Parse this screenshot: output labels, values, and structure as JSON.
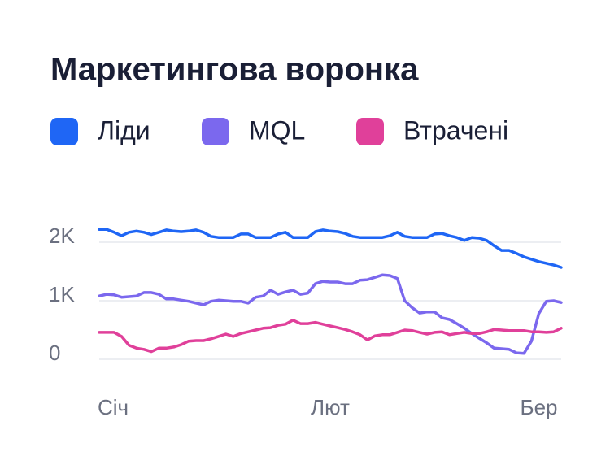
{
  "chart_data": {
    "type": "line",
    "title": "Маркетингова воронка",
    "categories": [
      "Січ",
      null,
      null,
      null,
      null,
      null,
      null,
      null,
      null,
      null,
      null,
      null,
      null,
      null,
      null,
      null,
      null,
      null,
      null,
      null,
      null,
      null,
      null,
      null,
      null,
      null,
      null,
      null,
      null,
      null,
      null,
      "Лют",
      null,
      null,
      null,
      null,
      null,
      null,
      null,
      null,
      null,
      null,
      null,
      null,
      null,
      null,
      null,
      null,
      null,
      null,
      null,
      null,
      null,
      null,
      null,
      null,
      null,
      null,
      null,
      "Бер",
      null,
      null,
      null
    ],
    "series": [
      {
        "name": "Ліди",
        "color": "#1f66f5",
        "values": [
          2220,
          2220,
          2170,
          2110,
          2170,
          2190,
          2170,
          2130,
          2170,
          2210,
          2190,
          2180,
          2190,
          2210,
          2170,
          2100,
          2080,
          2080,
          2080,
          2140,
          2140,
          2080,
          2080,
          2080,
          2140,
          2170,
          2080,
          2080,
          2080,
          2180,
          2210,
          2190,
          2180,
          2150,
          2100,
          2080,
          2080,
          2080,
          2080,
          2110,
          2170,
          2100,
          2080,
          2080,
          2080,
          2140,
          2150,
          2110,
          2080,
          2030,
          2080,
          2070,
          2030,
          1940,
          1860,
          1860,
          1810,
          1750,
          1710,
          1670,
          1640,
          1610,
          1570
        ]
      },
      {
        "name": "MQL",
        "color": "#7b68ee",
        "values": [
          1080,
          1110,
          1100,
          1060,
          1070,
          1080,
          1140,
          1140,
          1110,
          1030,
          1030,
          1010,
          990,
          960,
          930,
          990,
          1010,
          1000,
          990,
          990,
          960,
          1060,
          1080,
          1180,
          1110,
          1150,
          1180,
          1110,
          1130,
          1290,
          1330,
          1320,
          1320,
          1290,
          1290,
          1350,
          1360,
          1400,
          1440,
          1430,
          1380,
          1000,
          880,
          790,
          810,
          810,
          710,
          680,
          610,
          530,
          440,
          360,
          280,
          190,
          180,
          170,
          110,
          100,
          310,
          780,
          990,
          1000,
          970
        ]
      },
      {
        "name": "Втрачені",
        "color": "#e0409a",
        "values": [
          460,
          460,
          460,
          390,
          240,
          190,
          170,
          130,
          190,
          190,
          210,
          250,
          310,
          320,
          320,
          350,
          390,
          430,
          390,
          440,
          470,
          500,
          530,
          540,
          580,
          600,
          670,
          610,
          610,
          630,
          600,
          570,
          540,
          510,
          470,
          420,
          330,
          400,
          420,
          420,
          460,
          500,
          490,
          460,
          430,
          460,
          470,
          420,
          440,
          460,
          440,
          440,
          470,
          510,
          500,
          490,
          490,
          490,
          470,
          470,
          460,
          470,
          530
        ]
      }
    ],
    "ylim": [
      0,
      2300
    ],
    "yticks": [
      0,
      {
        "value": 1000,
        "label": "1K"
      },
      {
        "value": 2000,
        "label": "2K"
      }
    ],
    "grid": true
  }
}
